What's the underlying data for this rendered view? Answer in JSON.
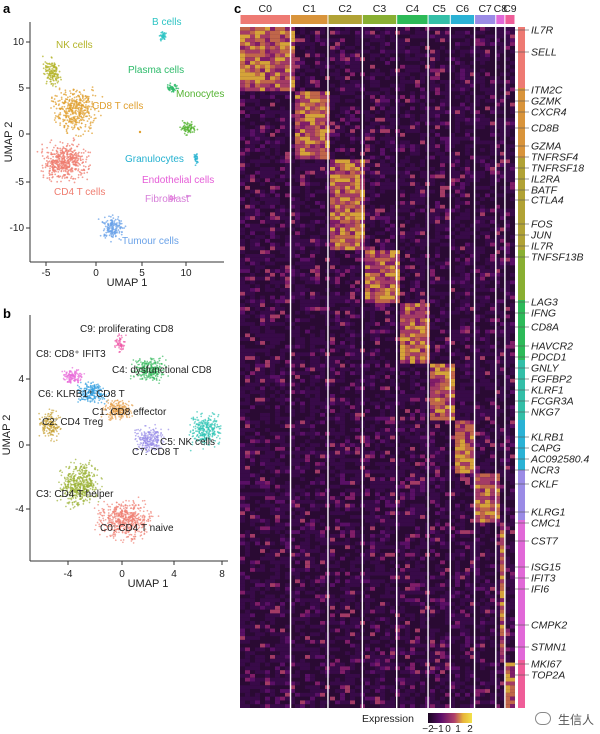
{
  "panels": {
    "a": "a",
    "b": "b",
    "c": "c"
  },
  "panel_a": {
    "xlabel": "UMAP 1",
    "ylabel": "UMAP 2",
    "xticks": [
      "-5",
      "0",
      "5",
      "10"
    ],
    "yticks": [
      "10",
      "5",
      "0",
      "-5",
      "-10"
    ],
    "clusters": [
      {
        "label": "NK cells",
        "color": "#b4b42a"
      },
      {
        "label": "B cells",
        "color": "#2ec4c4"
      },
      {
        "label": "Plasma cells",
        "color": "#2dbb6a"
      },
      {
        "label": "CD8 T cells",
        "color": "#e0a030"
      },
      {
        "label": "Monocytes",
        "color": "#55b433"
      },
      {
        "label": "Granulocytes",
        "color": "#24b1d0"
      },
      {
        "label": "Endothelial cells",
        "color": "#e55bd7"
      },
      {
        "label": "Fibroblast",
        "color": "#d77fd9"
      },
      {
        "label": "CD4 T cells",
        "color": "#ef7c6f"
      },
      {
        "label": "Tumour cells",
        "color": "#6aa2e8"
      }
    ]
  },
  "panel_b": {
    "xlabel": "UMAP 1",
    "ylabel": "UMAP 2",
    "xticks": [
      "-4",
      "0",
      "4",
      "8"
    ],
    "yticks": [
      "4",
      "0",
      "-4"
    ],
    "clusters": [
      {
        "label": "C9: proliferating CD8",
        "color": "#ee5aa8"
      },
      {
        "label": "C8: CD8⁺ IFIT3",
        "color": "#e86ad9"
      },
      {
        "label": "C4: dysfunctional CD8",
        "color": "#3cbc62"
      },
      {
        "label": "C6: KLRB1⁺ CD8 T",
        "color": "#35a0e0"
      },
      {
        "label": "C1: CD8 effector",
        "color": "#e6a04a"
      },
      {
        "label": "C5: NK cells",
        "color": "#2fc4b5"
      },
      {
        "label": "C2: CD4 Treg",
        "color": "#c9a43a"
      },
      {
        "label": "C7: CD8 T",
        "color": "#9a8ee8"
      },
      {
        "label": "C3: CD4 T helper",
        "color": "#9bb234"
      },
      {
        "label": "C0: CD4 T naive",
        "color": "#ef7f72"
      }
    ]
  },
  "panel_c": {
    "cluster_labels": [
      "C0",
      "C1",
      "C2",
      "C3",
      "C4",
      "C5",
      "C6",
      "C7",
      "C8",
      "C9"
    ],
    "cluster_colors": [
      "#ee7a73",
      "#d9943b",
      "#b1a235",
      "#89af32",
      "#2dba58",
      "#33bfa8",
      "#2ab2d5",
      "#9b8be6",
      "#e168d8",
      "#ef5d98"
    ],
    "genes": [
      "IL7R",
      "SELL",
      "ITM2C",
      "GZMK",
      "CXCR4",
      "CD8B",
      "GZMA",
      "TNFRSF4",
      "TNFRSF18",
      "IL2RA",
      "BATF",
      "CTLA4",
      "FOS",
      "JUN",
      "IL7R",
      "TNFSF13B",
      "LAG3",
      "IFNG",
      "CD8A",
      "HAVCR2",
      "PDCD1",
      "GNLY",
      "FGFBP2",
      "KLRF1",
      "FCGR3A",
      "NKG7",
      "KLRB1",
      "CAPG",
      "AC092580.4",
      "NCR3",
      "CKLF",
      "KLRG1",
      "CMC1",
      "CST7",
      "ISG15",
      "IFIT3",
      "IFI6",
      "CMPK2",
      "STMN1",
      "MKI67",
      "TOP2A"
    ],
    "legend_title": "Expression",
    "legend_ticks": [
      "−2",
      "−1",
      "0",
      "1",
      "2"
    ]
  },
  "watermark": "生信人"
}
